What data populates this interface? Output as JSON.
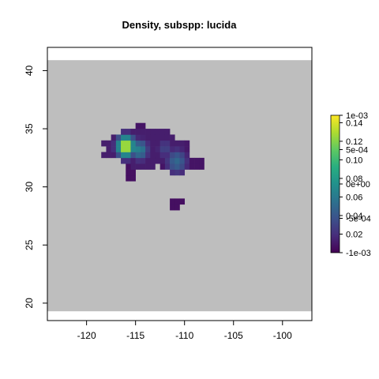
{
  "chart_data": {
    "type": "heatmap",
    "title": "Density, subspp: lucida",
    "xlabel": "",
    "ylabel": "",
    "xlim": [
      -124,
      -97
    ],
    "ylim": [
      18.5,
      42
    ],
    "x_ticks": [
      -120,
      -115,
      -110,
      -105,
      -100
    ],
    "y_ticks": [
      20,
      25,
      30,
      35,
      40
    ],
    "x_tick_labels": [
      "-120",
      "-115",
      "-110",
      "-105",
      "-100"
    ],
    "y_tick_labels": [
      "20",
      "25",
      "30",
      "35",
      "40"
    ],
    "raster_extent": {
      "x": [
        -124,
        -97
      ],
      "y": [
        19.3,
        40.9
      ]
    },
    "background_color": "#bebebe",
    "cell_size": 0.5,
    "colorscale": "viridis",
    "colorbar": {
      "range": [
        0,
        0.148
      ],
      "tick_values": [
        0.02,
        0.04,
        0.06,
        0.08,
        0.1,
        0.12,
        0.14
      ],
      "tick_labels": [
        "0.02",
        "0.04",
        "0.06",
        "0.08",
        "0.10",
        "0.12",
        "0.14"
      ],
      "overlay_tick_labels": [
        "1e-03",
        "5e-04",
        "0e+00",
        "-5e-04",
        "-1e-03"
      ],
      "overlay_tick_fractions": [
        1.0,
        0.75,
        0.5,
        0.25,
        0.0
      ]
    },
    "regions": [
      {
        "cx": -114.3,
        "cy": 33.4,
        "w": 9.0,
        "h": 3.4,
        "value": 0.012
      },
      {
        "cx": -114.8,
        "cy": 34.7,
        "w": 2.2,
        "h": 1.4,
        "value": 0.008
      },
      {
        "cx": -111.2,
        "cy": 33.1,
        "w": 4.2,
        "h": 1.8,
        "value": 0.01
      },
      {
        "cx": -110.4,
        "cy": 31.9,
        "w": 5.0,
        "h": 1.5,
        "value": 0.008
      },
      {
        "cx": -115.5,
        "cy": 31.1,
        "w": 1.5,
        "h": 1.5,
        "value": 0.006
      },
      {
        "cx": -111.0,
        "cy": 28.6,
        "w": 1.6,
        "h": 1.4,
        "value": 0.006
      }
    ],
    "hotspots": [
      {
        "x": -116.0,
        "y": 33.5,
        "peak": 0.145,
        "radius": 0.9
      },
      {
        "x": -114.6,
        "y": 33.2,
        "peak": 0.065,
        "radius": 0.9
      },
      {
        "x": -110.8,
        "y": 32.2,
        "peak": 0.05,
        "radius": 1.1
      },
      {
        "x": -112.0,
        "y": 33.3,
        "peak": 0.03,
        "radius": 0.9
      }
    ]
  }
}
